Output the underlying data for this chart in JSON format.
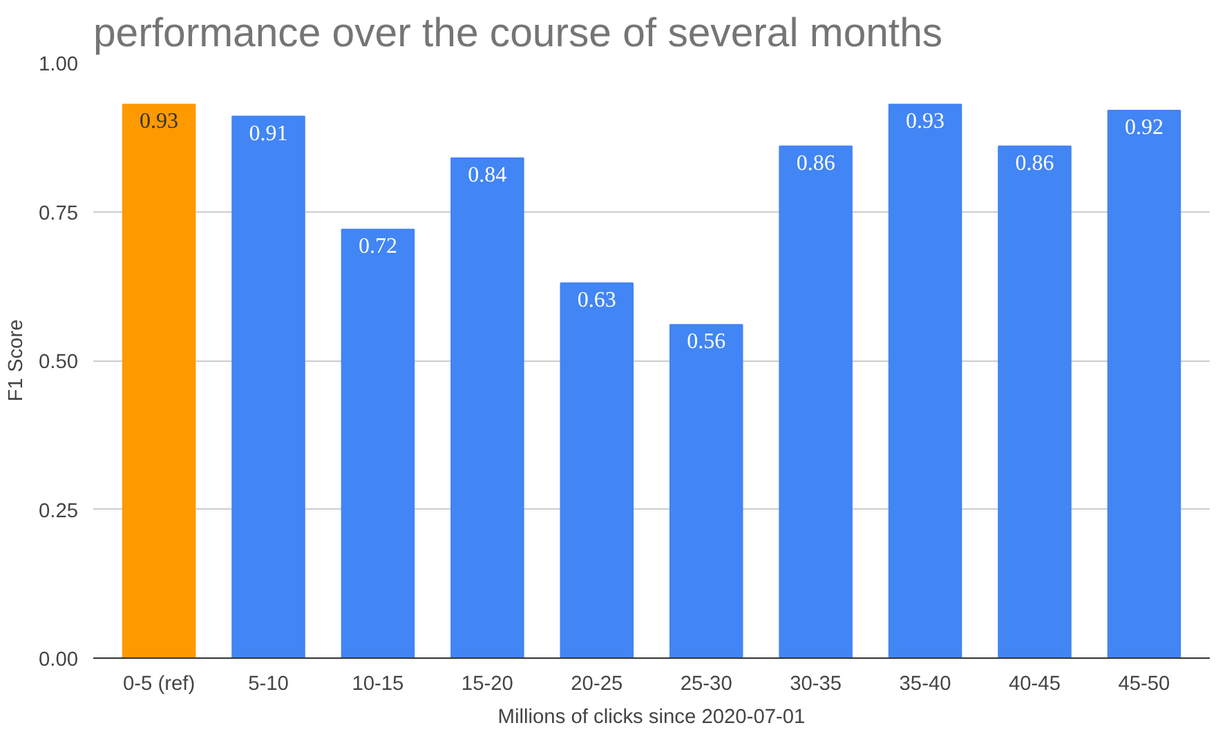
{
  "chart_data": {
    "type": "bar",
    "title": "performance over the course of several months",
    "xlabel": "Millions of clicks since 2020-07-01",
    "ylabel": "F1 Score",
    "categories": [
      "0-5 (ref)",
      "5-10",
      "10-15",
      "15-20",
      "20-25",
      "25-30",
      "30-35",
      "35-40",
      "40-45",
      "45-50"
    ],
    "values": [
      0.93,
      0.91,
      0.72,
      0.84,
      0.63,
      0.56,
      0.86,
      0.93,
      0.86,
      0.92
    ],
    "colors": [
      "#ff9900",
      "#4285f4",
      "#4285f4",
      "#4285f4",
      "#4285f4",
      "#4285f4",
      "#4285f4",
      "#4285f4",
      "#4285f4",
      "#4285f4"
    ],
    "ylim": [
      0,
      1
    ],
    "yticks": [
      {
        "value": 0,
        "label": "0.00"
      },
      {
        "value": 0.25,
        "label": "0.25"
      },
      {
        "value": 0.5,
        "label": "0.50"
      },
      {
        "value": 0.75,
        "label": "0.75"
      },
      {
        "value": 1,
        "label": "1.00"
      }
    ],
    "grid": "y",
    "data_labels": true
  }
}
